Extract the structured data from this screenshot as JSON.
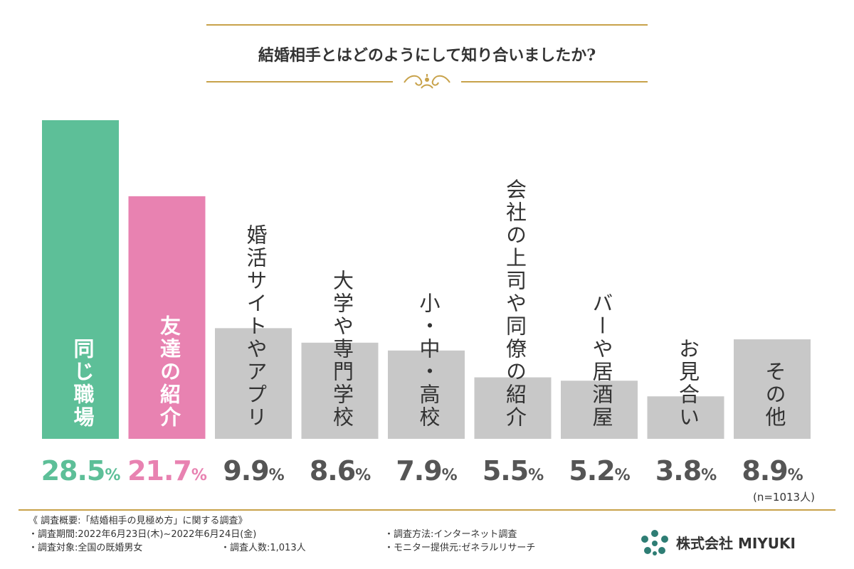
{
  "chart_data": {
    "type": "bar",
    "title": "結婚相手とはどのようにして知り合いましたか?",
    "categories": [
      "同じ職場",
      "友達の紹介",
      "婚活サイトやアプリ",
      "大学や専門学校",
      "小・中・高校",
      "会社の上司や同僚の紹介",
      "バーや居酒屋",
      "お見合い",
      "その他"
    ],
    "values": [
      28.5,
      21.7,
      9.9,
      8.6,
      7.9,
      5.5,
      5.2,
      3.8,
      8.9
    ],
    "value_labels": [
      "28.5",
      "21.7",
      "9.9",
      "8.6",
      "7.9",
      "5.5",
      "5.2",
      "3.8",
      "8.9"
    ],
    "unit": "%",
    "colors": [
      "#5dbf98",
      "#e882b1",
      "#c8c8c8",
      "#c8c8c8",
      "#c8c8c8",
      "#c8c8c8",
      "#c8c8c8",
      "#c8c8c8",
      "#c8c8c8"
    ],
    "value_colors": [
      "#5dbf98",
      "#e882b1",
      "#555555",
      "#555555",
      "#555555",
      "#555555",
      "#555555",
      "#555555",
      "#555555"
    ],
    "label_inside": [
      true,
      true,
      false,
      false,
      false,
      false,
      false,
      false,
      true
    ],
    "note": "(n=1013人)",
    "ylim": [
      0,
      28.5
    ],
    "grid": false
  },
  "footer": {
    "summary": "《 調査概要:「結婚相手の見極め方」に関する調査》",
    "period": "・調査期間:2022年6月23日(木)~2022年6月24日(金)",
    "target": "・調査対象:全国の既婚男女",
    "count": "・調査人数:1,013人",
    "method": "・調査方法:インターネット調査",
    "provider": "・モニター提供元:ゼネラルリサーチ"
  },
  "brand": {
    "name": "株式会社 MIYUKI",
    "logo_icon": "flower-dots-icon",
    "color": "#2e7d74"
  },
  "accent_color": "#c8a24a"
}
